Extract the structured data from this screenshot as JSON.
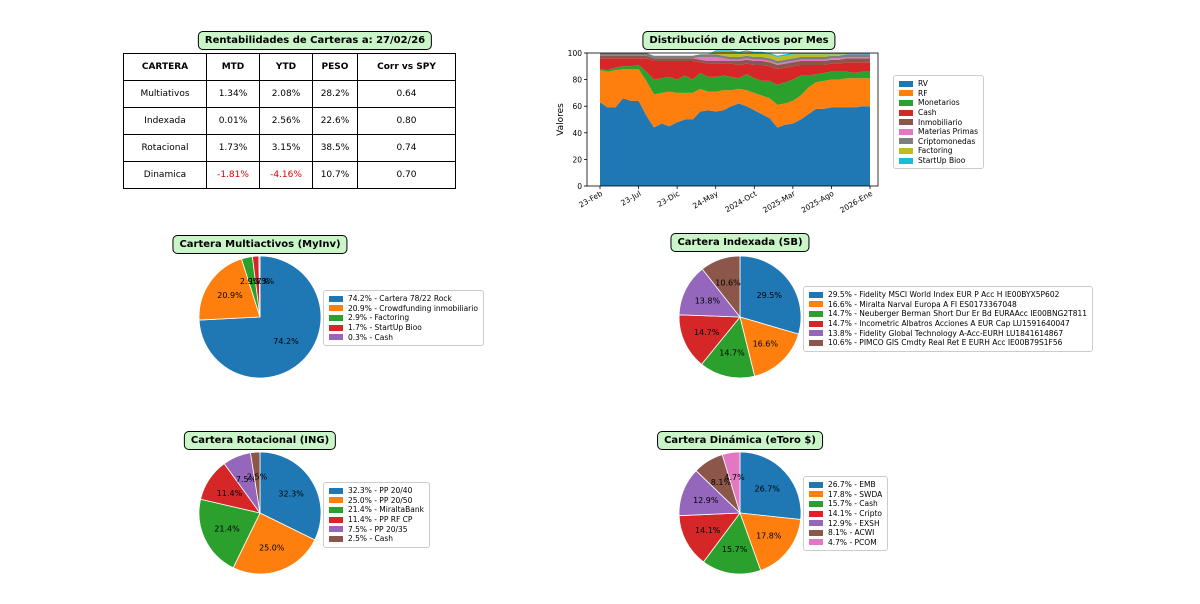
{
  "table": {
    "title": "Rentabilidades de Carteras a:  27/02/26",
    "headers": [
      "CARTERA",
      "MTD",
      "YTD",
      "PESO",
      "Corr vs SPY"
    ],
    "rows": [
      [
        "Multiativos",
        "1.34%",
        "2.08%",
        "28.2%",
        "0.64"
      ],
      [
        "Indexada",
        "0.01%",
        "2.56%",
        "22.6%",
        "0.80"
      ],
      [
        "Rotacional",
        "1.73%",
        "3.15%",
        "38.5%",
        "0.74"
      ],
      [
        "Dinamica",
        "-1.81%",
        "-4.16%",
        "10.7%",
        "0.70"
      ]
    ],
    "negative_color": "#e00000"
  },
  "chart_data": [
    {
      "type": "area",
      "title": "Distribución de Activos por Mes",
      "ylabel": "Valores",
      "xlabel": "",
      "ylim": [
        0,
        100
      ],
      "yticks": [
        0,
        20,
        40,
        60,
        80,
        100
      ],
      "xtick_labels": [
        "23-Feb",
        "23-Jul",
        "23-Dic",
        "24-May",
        "2024-Oct",
        "2025-Mar",
        "2025-Ago",
        "2026-Ene"
      ],
      "xtick_index": [
        0,
        5,
        10,
        15,
        20,
        25,
        30,
        35
      ],
      "legend_position": "right",
      "series": [
        {
          "name": "RV",
          "color": "#1f77b4",
          "values": [
            63,
            59,
            59,
            66,
            64,
            64,
            53,
            44,
            47,
            45,
            48,
            50,
            50,
            56,
            57,
            56,
            57,
            60,
            62,
            60,
            57,
            54,
            51,
            44,
            46,
            47,
            50,
            54,
            58,
            58,
            59,
            59,
            59,
            59,
            60,
            60
          ]
        },
        {
          "name": "RF",
          "color": "#ff7f0e",
          "values": [
            24,
            27,
            28,
            22,
            24,
            24,
            26,
            25,
            23,
            26,
            22,
            20,
            20,
            17,
            14,
            15,
            15,
            12,
            11,
            12,
            13,
            14,
            15,
            17,
            16,
            17,
            18,
            20,
            20,
            21,
            21,
            21,
            22,
            22,
            21,
            21
          ]
        },
        {
          "name": "Monetarios",
          "color": "#2ca02c",
          "values": [
            1,
            1,
            2,
            2,
            2,
            3,
            7,
            11,
            11,
            11,
            10,
            13,
            10,
            12,
            11,
            11,
            11,
            10,
            8,
            12,
            11,
            11,
            13,
            15,
            16,
            16,
            15,
            9,
            6,
            6,
            6,
            6,
            5,
            4,
            5,
            5
          ]
        },
        {
          "name": "Cash",
          "color": "#d62728",
          "values": [
            8,
            9,
            7,
            6,
            6,
            5,
            10,
            14,
            13,
            12,
            14,
            11,
            14,
            8,
            10,
            10,
            9,
            10,
            10,
            8,
            10,
            12,
            11,
            12,
            11,
            10,
            8,
            8,
            7,
            6,
            6,
            6,
            7,
            8,
            7,
            7
          ]
        },
        {
          "name": "Inmobiliario",
          "color": "#8c564b",
          "values": [
            2,
            2,
            2,
            2,
            2,
            2,
            2,
            2,
            2,
            2,
            2,
            2,
            2,
            2,
            2,
            2,
            2,
            2,
            3,
            3,
            3,
            3,
            3,
            3,
            3,
            3,
            3,
            3,
            3,
            3,
            3,
            3,
            3,
            3,
            3,
            3
          ]
        },
        {
          "name": "Materias Primas",
          "color": "#e377c2",
          "values": [
            0,
            0,
            0,
            0,
            0,
            0,
            0,
            0,
            0,
            0,
            0,
            0,
            0,
            2,
            3,
            3,
            2,
            1,
            1,
            1,
            1,
            1,
            1,
            1,
            1,
            1,
            1,
            1,
            1,
            1,
            1,
            1,
            1,
            1,
            1,
            1
          ]
        },
        {
          "name": "Criptomonedas",
          "color": "#7f7f7f",
          "values": [
            2,
            2,
            2,
            2,
            2,
            2,
            2,
            2,
            2,
            2,
            2,
            2,
            2,
            2,
            2,
            2,
            2,
            2,
            2,
            2,
            2,
            2,
            2,
            2,
            2,
            2,
            2,
            2,
            2,
            2,
            2,
            2,
            2,
            2,
            2,
            2
          ]
        },
        {
          "name": "Factoring",
          "color": "#bcbd22",
          "values": [
            0,
            0,
            0,
            0,
            0,
            0,
            0,
            0,
            0,
            0,
            0,
            0,
            0,
            0,
            0,
            2,
            3,
            4,
            3,
            3,
            3,
            3,
            3,
            3,
            3,
            3,
            2,
            2,
            2,
            2,
            1,
            1,
            0,
            0,
            0,
            0
          ]
        },
        {
          "name": "StartUp Bioo",
          "color": "#17becf",
          "values": [
            0,
            0,
            0,
            0,
            0,
            0,
            0,
            0,
            0,
            0,
            0,
            0,
            0,
            0,
            0,
            1,
            1,
            1,
            1,
            1,
            1,
            1,
            1,
            1,
            1,
            1,
            1,
            1,
            1,
            1,
            1,
            1,
            1,
            1,
            1,
            1
          ]
        }
      ]
    },
    {
      "type": "pie",
      "title": "Cartera Multiactivos (MyInv)",
      "labels": [
        "2.9%",
        "1.7%",
        "0.3%",
        "74.2%",
        "20.9%"
      ],
      "slices": [
        {
          "name": "74.2% - Cartera 78/22 Rock",
          "pct": "74.2%",
          "value": 74.2,
          "color": "#1f77b4"
        },
        {
          "name": "20.9% - Crowdfunding inmobiliario",
          "pct": "20.9%",
          "value": 20.9,
          "color": "#ff7f0e"
        },
        {
          "name": "2.9% - Factoring",
          "pct": "2.9%",
          "value": 2.9,
          "color": "#2ca02c"
        },
        {
          "name": "1.7% - StartUp Bioo",
          "pct": "1.7%",
          "value": 1.7,
          "color": "#d62728"
        },
        {
          "name": "0.3% - Cash",
          "pct": "0.3%",
          "value": 0.3,
          "color": "#9467bd"
        }
      ]
    },
    {
      "type": "pie",
      "title": "Cartera Indexada (SB)",
      "slices": [
        {
          "name": "29.5% - Fidelity MSCI World Index EUR P Acc H IE00BYX5P602",
          "pct": "29.5%",
          "value": 29.5,
          "color": "#1f77b4"
        },
        {
          "name": "16.6% - Miralta Narval Europa A FI ES0173367048",
          "pct": "16.6%",
          "value": 16.6,
          "color": "#ff7f0e"
        },
        {
          "name": "14.7% - Neuberger Berman Short Dur Er Bd EURAAcc IE00BNG2T811",
          "pct": "14.7%",
          "value": 14.7,
          "color": "#2ca02c"
        },
        {
          "name": "14.7% - Incometric Albatros Acciones A EUR Cap LU1591640047",
          "pct": "14.7%",
          "value": 14.7,
          "color": "#d62728"
        },
        {
          "name": "13.8% - Fidelity Global Technology A-Acc-EURH LU1841614867",
          "pct": "13.8%",
          "value": 13.8,
          "color": "#9467bd"
        },
        {
          "name": "10.6% - PIMCO GIS Cmdty Real Ret E EURH Acc IE00B79S1F56",
          "pct": "10.6%",
          "value": 10.6,
          "color": "#8c564b"
        }
      ]
    },
    {
      "type": "pie",
      "title": "Cartera Rotacional (ING)",
      "slices": [
        {
          "name": "32.3% - PP 20/40",
          "pct": "32.3%",
          "value": 32.3,
          "color": "#1f77b4"
        },
        {
          "name": "25.0% - PP 20/50",
          "pct": "25.0%",
          "value": 25.0,
          "color": "#ff7f0e"
        },
        {
          "name": "21.4% - MiraltaBank",
          "pct": "21.4%",
          "value": 21.4,
          "color": "#2ca02c"
        },
        {
          "name": "11.4% - PP RF CP",
          "pct": "11.4%",
          "value": 11.4,
          "color": "#d62728"
        },
        {
          "name": "7.5% - PP 20/35",
          "pct": "7.5%",
          "value": 7.5,
          "color": "#9467bd"
        },
        {
          "name": "2.5% - Cash",
          "pct": "2.5%",
          "value": 2.5,
          "color": "#8c564b"
        }
      ]
    },
    {
      "type": "pie",
      "title": "Cartera Dinámica (eToro $)",
      "slices": [
        {
          "name": "26.7% - EMB",
          "pct": "26.7%",
          "value": 26.7,
          "color": "#1f77b4"
        },
        {
          "name": "17.8% - SWDA",
          "pct": "17.8%",
          "value": 17.8,
          "color": "#ff7f0e"
        },
        {
          "name": "15.7% - Cash",
          "pct": "15.7%",
          "value": 15.7,
          "color": "#2ca02c"
        },
        {
          "name": "14.1% - Cripto",
          "pct": "14.1%",
          "value": 14.1,
          "color": "#d62728"
        },
        {
          "name": "12.9% - EXSH",
          "pct": "12.9%",
          "value": 12.9,
          "color": "#9467bd"
        },
        {
          "name": "8.1% - ACWI",
          "pct": "8.1%",
          "value": 8.1,
          "color": "#8c564b"
        },
        {
          "name": "4.7% - PCOM",
          "pct": "4.7%",
          "value": 4.7,
          "color": "#e377c2"
        }
      ]
    }
  ]
}
